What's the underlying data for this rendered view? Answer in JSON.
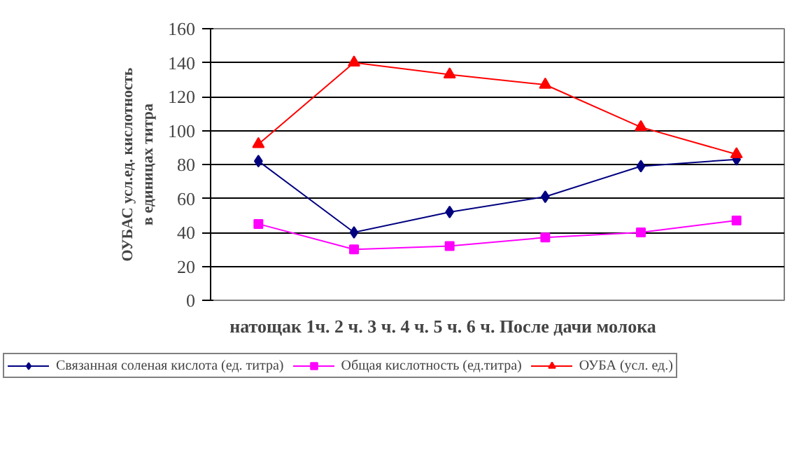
{
  "chart_data": {
    "type": "line",
    "categories": [
      null,
      null,
      null,
      null,
      null,
      null
    ],
    "xlabel": "натощак 1ч.     2 ч.     3 ч.     4 ч.     5 ч.     6 ч.     После дачи молока",
    "ylabel": "ОУБАС усл.ед. кислотность в единицах титра",
    "series": [
      {
        "name": "Связанная соленая кислота (ед. титра)",
        "color": "#000080",
        "marker": "diamond",
        "values": [
          82,
          40,
          52,
          61,
          79,
          83
        ]
      },
      {
        "name": "Общая кислотность (ед.титра)",
        "color": "#ff00ff",
        "marker": "square",
        "values": [
          45,
          30,
          32,
          37,
          40,
          47
        ]
      },
      {
        "name": "ОУБА (усл. ед.)",
        "color": "#ff0000",
        "marker": "triangle",
        "values": [
          92,
          140,
          133,
          127,
          102,
          86
        ]
      }
    ],
    "ylim": [
      0,
      160
    ],
    "yticks": [
      0,
      20,
      40,
      60,
      80,
      100,
      120,
      140,
      160
    ],
    "grid": "y",
    "legend": "bottom"
  }
}
